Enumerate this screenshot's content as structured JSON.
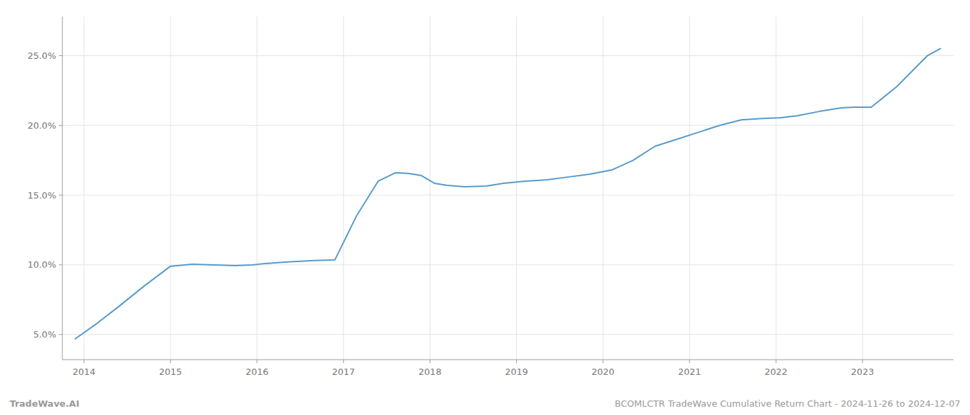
{
  "chart_data": {
    "type": "line",
    "x": [
      2013.9,
      2014.15,
      2014.4,
      2014.7,
      2015.0,
      2015.25,
      2015.5,
      2015.75,
      2015.95,
      2016.1,
      2016.35,
      2016.65,
      2016.9,
      2017.15,
      2017.4,
      2017.6,
      2017.75,
      2017.9,
      2018.05,
      2018.2,
      2018.4,
      2018.65,
      2018.85,
      2019.1,
      2019.35,
      2019.6,
      2019.85,
      2020.1,
      2020.35,
      2020.6,
      2020.85,
      2021.1,
      2021.35,
      2021.6,
      2021.85,
      2022.05,
      2022.25,
      2022.5,
      2022.75,
      2022.9,
      2023.1,
      2023.4,
      2023.75,
      2023.9
    ],
    "values": [
      4.7,
      5.8,
      7.0,
      8.5,
      9.9,
      10.05,
      10.0,
      9.95,
      10.0,
      10.1,
      10.2,
      10.3,
      10.35,
      13.5,
      16.0,
      16.6,
      16.55,
      16.4,
      15.85,
      15.7,
      15.6,
      15.65,
      15.85,
      16.0,
      16.1,
      16.3,
      16.5,
      16.8,
      17.5,
      18.5,
      19.0,
      19.5,
      20.0,
      20.4,
      20.5,
      20.55,
      20.7,
      21.0,
      21.25,
      21.3,
      21.3,
      22.8,
      25.0,
      25.5
    ],
    "color": "#5599cc",
    "xlim": [
      2013.75,
      2024.05
    ],
    "xticks": [
      2014,
      2015,
      2016,
      2017,
      2018,
      2019,
      2020,
      2021,
      2022,
      2023
    ],
    "ylim": [
      3.2,
      27.8
    ],
    "yticks": [
      {
        "value": 5.0,
        "label": "5.0%"
      },
      {
        "value": 10.0,
        "label": "10.0%"
      },
      {
        "value": 15.0,
        "label": "15.0%"
      },
      {
        "value": 20.0,
        "label": "20.0%"
      },
      {
        "value": 25.0,
        "label": "25.0%"
      }
    ],
    "grid": true,
    "annotations": [
      "TradeWave.AI",
      "BCOMLCTR TradeWave Cumulative Return Chart - 2024-11-26 to 2024-12-07"
    ]
  }
}
